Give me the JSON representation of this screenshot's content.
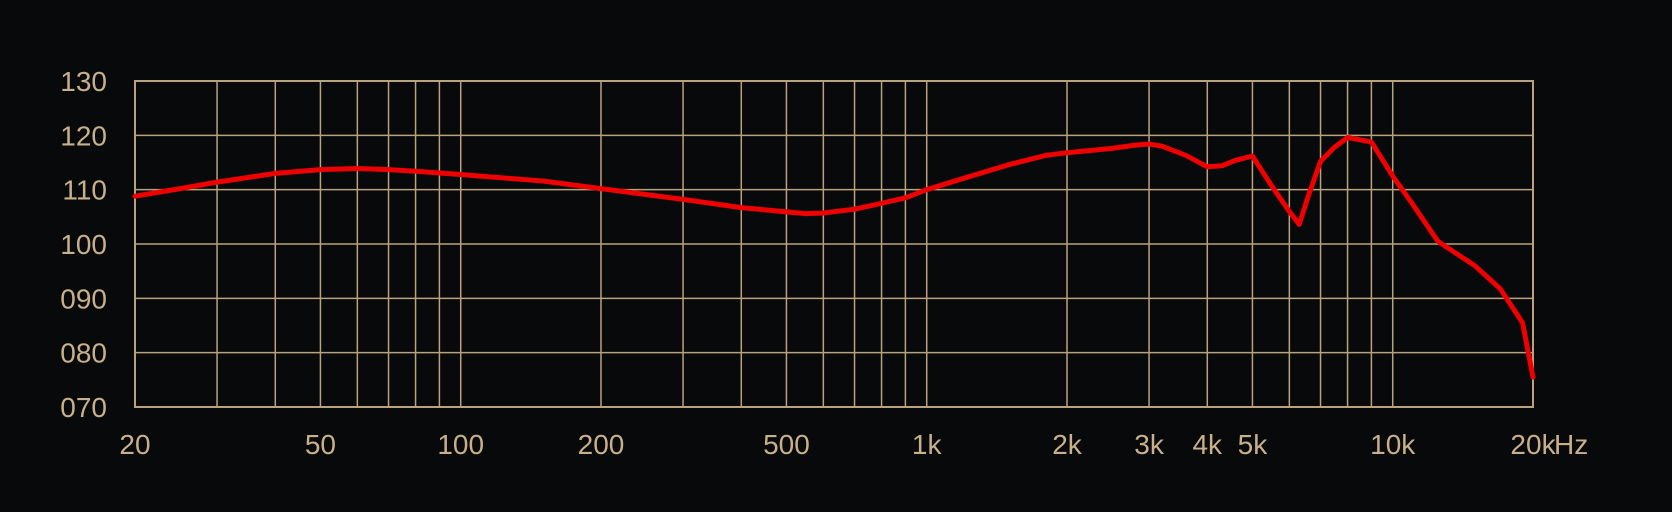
{
  "chart_data": {
    "type": "line",
    "title": "",
    "xlabel": "",
    "ylabel": "",
    "x_scale": "log",
    "xlim": [
      20,
      20000
    ],
    "ylim": [
      70,
      130
    ],
    "grid": true,
    "colors": {
      "background": "#08090b",
      "grid": "#b9a27c",
      "tick_text": "#c8b08a",
      "curve": "#ee0000"
    },
    "x_ticks": [
      {
        "value": 20,
        "label": "20"
      },
      {
        "value": 50,
        "label": "50"
      },
      {
        "value": 100,
        "label": "100"
      },
      {
        "value": 200,
        "label": "200"
      },
      {
        "value": 500,
        "label": "500"
      },
      {
        "value": 1000,
        "label": "1k"
      },
      {
        "value": 2000,
        "label": "2k"
      },
      {
        "value": 3000,
        "label": "3k"
      },
      {
        "value": 4000,
        "label": "4k"
      },
      {
        "value": 5000,
        "label": "5k"
      },
      {
        "value": 10000,
        "label": "10k"
      },
      {
        "value": 20000,
        "label": "20k"
      }
    ],
    "x_unit": "Hz",
    "x_gridlines": [
      20,
      30,
      40,
      50,
      60,
      70,
      80,
      90,
      100,
      200,
      300,
      400,
      500,
      600,
      700,
      800,
      900,
      1000,
      2000,
      3000,
      4000,
      5000,
      6000,
      7000,
      8000,
      9000,
      10000,
      20000
    ],
    "y_ticks": [
      {
        "value": 70,
        "label": "070"
      },
      {
        "value": 80,
        "label": "080"
      },
      {
        "value": 90,
        "label": "090"
      },
      {
        "value": 100,
        "label": "100"
      },
      {
        "value": 110,
        "label": "110"
      },
      {
        "value": 120,
        "label": "120"
      },
      {
        "value": 130,
        "label": "130"
      }
    ],
    "series": [
      {
        "color": "#ee0000",
        "points": [
          [
            20,
            108.8
          ],
          [
            25,
            110.2
          ],
          [
            30,
            111.4
          ],
          [
            40,
            113.0
          ],
          [
            50,
            113.7
          ],
          [
            60,
            113.9
          ],
          [
            70,
            113.7
          ],
          [
            80,
            113.4
          ],
          [
            100,
            112.8
          ],
          [
            150,
            111.6
          ],
          [
            200,
            110.2
          ],
          [
            300,
            108.2
          ],
          [
            400,
            106.7
          ],
          [
            500,
            105.9
          ],
          [
            550,
            105.6
          ],
          [
            600,
            105.7
          ],
          [
            700,
            106.4
          ],
          [
            800,
            107.5
          ],
          [
            900,
            108.5
          ],
          [
            1000,
            110.0
          ],
          [
            1200,
            112.1
          ],
          [
            1500,
            114.6
          ],
          [
            1800,
            116.3
          ],
          [
            2000,
            116.8
          ],
          [
            2500,
            117.6
          ],
          [
            2800,
            118.2
          ],
          [
            3000,
            118.4
          ],
          [
            3200,
            118.0
          ],
          [
            3600,
            116.3
          ],
          [
            4000,
            114.2
          ],
          [
            4300,
            114.4
          ],
          [
            4600,
            115.4
          ],
          [
            5000,
            116.2
          ],
          [
            5500,
            110.7
          ],
          [
            6000,
            106.0
          ],
          [
            6300,
            103.6
          ],
          [
            6600,
            109.0
          ],
          [
            7000,
            115.2
          ],
          [
            7500,
            117.8
          ],
          [
            8000,
            119.6
          ],
          [
            9000,
            118.8
          ],
          [
            10000,
            112.5
          ],
          [
            11000,
            107.5
          ],
          [
            12500,
            100.5
          ],
          [
            15000,
            96.0
          ],
          [
            17000,
            91.8
          ],
          [
            19000,
            85.5
          ],
          [
            20000,
            75.5
          ]
        ]
      }
    ]
  }
}
